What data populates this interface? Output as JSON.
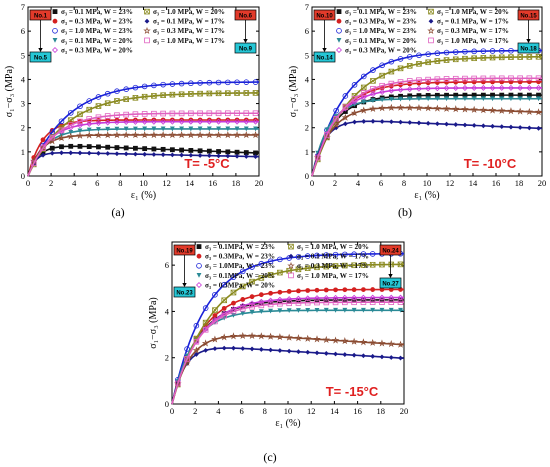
{
  "chart_data": [
    {
      "type": "line",
      "caption": "(a)",
      "annotation": "T= -5°C",
      "xlabel": "ε₁ (%)",
      "ylabel": "σ₁−σ₃ (MPa)",
      "xlim": [
        0,
        20
      ],
      "ylim": [
        0,
        7
      ],
      "xticks": [
        "0",
        "2",
        "4",
        "6",
        "8",
        "10",
        "12",
        "14",
        "16",
        "18",
        "20"
      ],
      "yticks": [
        "0",
        "1",
        "2",
        "3",
        "4",
        "5",
        "6",
        "7"
      ],
      "tags": [
        "No.1",
        "No.6",
        "No.5",
        "No.9"
      ],
      "legend": [
        {
          "label": "σ₃ = 0.1 MPa, W = 23%",
          "marker": "square-filled",
          "color": "#111111"
        },
        {
          "label": "σ₃ = 0.3 MPa, W = 23%",
          "marker": "circle-filled",
          "color": "#d42020"
        },
        {
          "label": "σ₃ = 1.0 MPa, W = 23%",
          "marker": "circle-open",
          "color": "#1a22d8"
        },
        {
          "label": "σ₃ = 0.1 MPa, W = 20%",
          "marker": "triangle-down",
          "color": "#2a8a96"
        },
        {
          "label": "σ₃ = 0.3 MPa, W = 20%",
          "marker": "diamond-open",
          "color": "#c83ad8"
        },
        {
          "label": "σ₃ = 1.0 MPa, W = 20%",
          "marker": "boxx",
          "color": "#8a8a20"
        },
        {
          "label": "σ₃ = 0.1 MPa, W = 17%",
          "marker": "diamond-filled",
          "color": "#1a1a8a"
        },
        {
          "label": "σ₃ = 0.3 MPa, W = 17%",
          "marker": "star-open",
          "color": "#8a4a30"
        },
        {
          "label": "σ₃ = 1.0 MPa, W = 17%",
          "marker": "square-open",
          "color": "#e060c0"
        }
      ],
      "series": [
        {
          "peak": 1.32,
          "k": 1.1,
          "decay": 0.014,
          "marker": "square-filled",
          "color": "#111111"
        },
        {
          "peak": 2.32,
          "k": 0.8,
          "decay": 0,
          "marker": "circle-filled",
          "color": "#d42020"
        },
        {
          "peak": 3.9,
          "k": 0.3,
          "decay": 0,
          "marker": "circle-open",
          "color": "#1a22d8"
        },
        {
          "peak": 1.95,
          "k": 0.7,
          "decay": 0,
          "marker": "triangle-down",
          "color": "#2a8a96"
        },
        {
          "peak": 2.25,
          "k": 0.6,
          "decay": 0,
          "marker": "diamond-open",
          "color": "#c83ad8"
        },
        {
          "peak": 3.45,
          "k": 0.3,
          "decay": 0,
          "marker": "boxx",
          "color": "#8a8a20"
        },
        {
          "peak": 1.0,
          "k": 1.6,
          "decay": 0.01,
          "marker": "diamond-filled",
          "color": "#1a1a8a"
        },
        {
          "peak": 1.7,
          "k": 0.9,
          "decay": 0,
          "marker": "star-open",
          "color": "#8a4a30"
        },
        {
          "peak": 2.6,
          "k": 0.45,
          "decay": 0,
          "marker": "square-open",
          "color": "#e060c0"
        }
      ]
    },
    {
      "type": "line",
      "caption": "(b)",
      "annotation": "T= -10°C",
      "xlabel": "ε₁ (%)",
      "ylabel": "σ₁−σ₃ (MPa)",
      "xlim": [
        0,
        20
      ],
      "ylim": [
        0,
        7
      ],
      "xticks": [
        "0",
        "2",
        "4",
        "6",
        "8",
        "10",
        "12",
        "14",
        "16",
        "18",
        "20"
      ],
      "yticks": [
        "0",
        "1",
        "2",
        "3",
        "4",
        "5",
        "6",
        "7"
      ],
      "tags": [
        "No.10",
        "No.15",
        "No.14",
        "No.18"
      ],
      "legend": [
        {
          "label": "σ₃ = 0.1 MPa, W = 23%",
          "marker": "square-filled",
          "color": "#111111"
        },
        {
          "label": "σ₃ = 0.3 MPa, W = 23%",
          "marker": "circle-filled",
          "color": "#d42020"
        },
        {
          "label": "σ₃ = 1.0 MPa, W = 23%",
          "marker": "circle-open",
          "color": "#1a22d8"
        },
        {
          "label": "σ₃ = 0.1 MPa, W = 20%",
          "marker": "triangle-down",
          "color": "#2a8a96"
        },
        {
          "label": "σ₃ = 0.3 MPa, W = 20%",
          "marker": "diamond-open",
          "color": "#c83ad8"
        },
        {
          "label": "σ₃ = 1.0 MPa, W = 20%",
          "marker": "boxx",
          "color": "#8a8a20"
        },
        {
          "label": "σ₃ = 0.1 MPa, W = 17%",
          "marker": "diamond-filled",
          "color": "#1a1a8a"
        },
        {
          "label": "σ₃ = 0.3 MPa, W = 17%",
          "marker": "star-open",
          "color": "#8a4a30"
        },
        {
          "label": "σ₃ = 1.0 MPa, W = 17%",
          "marker": "square-open",
          "color": "#e060c0"
        }
      ],
      "series": [
        {
          "peak": 3.35,
          "k": 0.55,
          "decay": 0,
          "marker": "square-filled",
          "color": "#111111"
        },
        {
          "peak": 3.9,
          "k": 0.45,
          "decay": 0,
          "marker": "circle-filled",
          "color": "#d42020"
        },
        {
          "peak": 5.2,
          "k": 0.35,
          "decay": 0,
          "marker": "circle-open",
          "color": "#1a22d8"
        },
        {
          "peak": 3.2,
          "k": 0.7,
          "decay": 0,
          "marker": "triangle-down",
          "color": "#2a8a96"
        },
        {
          "peak": 3.65,
          "k": 0.5,
          "decay": 0,
          "marker": "diamond-open",
          "color": "#c83ad8"
        },
        {
          "peak": 4.95,
          "k": 0.3,
          "decay": 0,
          "marker": "boxx",
          "color": "#8a8a20"
        },
        {
          "peak": 2.4,
          "k": 0.9,
          "decay": 0.009,
          "marker": "diamond-filled",
          "color": "#1a1a8a"
        },
        {
          "peak": 3.0,
          "k": 0.6,
          "decay": 0.006,
          "marker": "star-open",
          "color": "#8a4a30"
        },
        {
          "peak": 4.05,
          "k": 0.42,
          "decay": 0,
          "marker": "square-open",
          "color": "#e060c0"
        }
      ]
    },
    {
      "type": "line",
      "caption": "(c)",
      "annotation": "T= -15°C",
      "xlabel": "ε₁ (%)",
      "ylabel": "σ₁−σ₃ (MPa)",
      "xlim": [
        0,
        20
      ],
      "ylim": [
        0,
        7
      ],
      "xticks": [
        "0",
        "2",
        "4",
        "6",
        "8",
        "10",
        "12",
        "14",
        "16",
        "18",
        "20"
      ],
      "yticks": [
        "0",
        "2",
        "4",
        "6"
      ],
      "tags": [
        "No.19",
        "No.24",
        "No.23",
        "No.27"
      ],
      "legend": [
        {
          "label": "σ₃ = 0.1MPa, W = 23%",
          "marker": "square-filled",
          "color": "#111111"
        },
        {
          "label": "σ₃ = 0.3MPa, W = 23%",
          "marker": "circle-filled",
          "color": "#d42020"
        },
        {
          "label": "σ₃ = 1.0MPa, W = 23%",
          "marker": "circle-open",
          "color": "#1a22d8"
        },
        {
          "label": "σ₃ = 0.1MPa, W = 20%",
          "marker": "triangle-down",
          "color": "#2a8a96"
        },
        {
          "label": "σ₃ = 0.3MPa, W = 20%",
          "marker": "diamond-open",
          "color": "#c83ad8"
        },
        {
          "label": "σ₃ = 1.0 MPa, W = 20%",
          "marker": "boxx",
          "color": "#8a8a20"
        },
        {
          "label": "σ₃ = 0.1 MPa, W = 17%",
          "marker": "diamond-filled",
          "color": "#1a1a8a"
        },
        {
          "label": "σ₃ = 0.3 MPa, W = 17%",
          "marker": "star-open",
          "color": "#8a4a30"
        },
        {
          "label": "σ₃ = 1.0 MPa, W = 17%",
          "marker": "square-open",
          "color": "#e060c0"
        }
      ],
      "series": [
        {
          "peak": 4.5,
          "k": 0.45,
          "decay": 0,
          "marker": "square-filled",
          "color": "#111111"
        },
        {
          "peak": 4.95,
          "k": 0.4,
          "decay": 0,
          "marker": "circle-filled",
          "color": "#d42020"
        },
        {
          "peak": 6.5,
          "k": 0.35,
          "decay": 0,
          "marker": "circle-open",
          "color": "#1a22d8"
        },
        {
          "peak": 4.05,
          "k": 0.55,
          "decay": 0,
          "marker": "triangle-down",
          "color": "#2a8a96"
        },
        {
          "peak": 4.6,
          "k": 0.42,
          "decay": 0,
          "marker": "diamond-open",
          "color": "#c83ad8"
        },
        {
          "peak": 6.05,
          "k": 0.3,
          "decay": 0,
          "marker": "boxx",
          "color": "#8a8a20"
        },
        {
          "peak": 2.6,
          "k": 0.9,
          "decay": 0.012,
          "marker": "diamond-filled",
          "color": "#1a1a8a"
        },
        {
          "peak": 3.2,
          "k": 0.65,
          "decay": 0.01,
          "marker": "star-open",
          "color": "#8a4a30"
        },
        {
          "peak": 4.4,
          "k": 0.45,
          "decay": 0,
          "marker": "square-open",
          "color": "#e060c0"
        }
      ]
    }
  ]
}
